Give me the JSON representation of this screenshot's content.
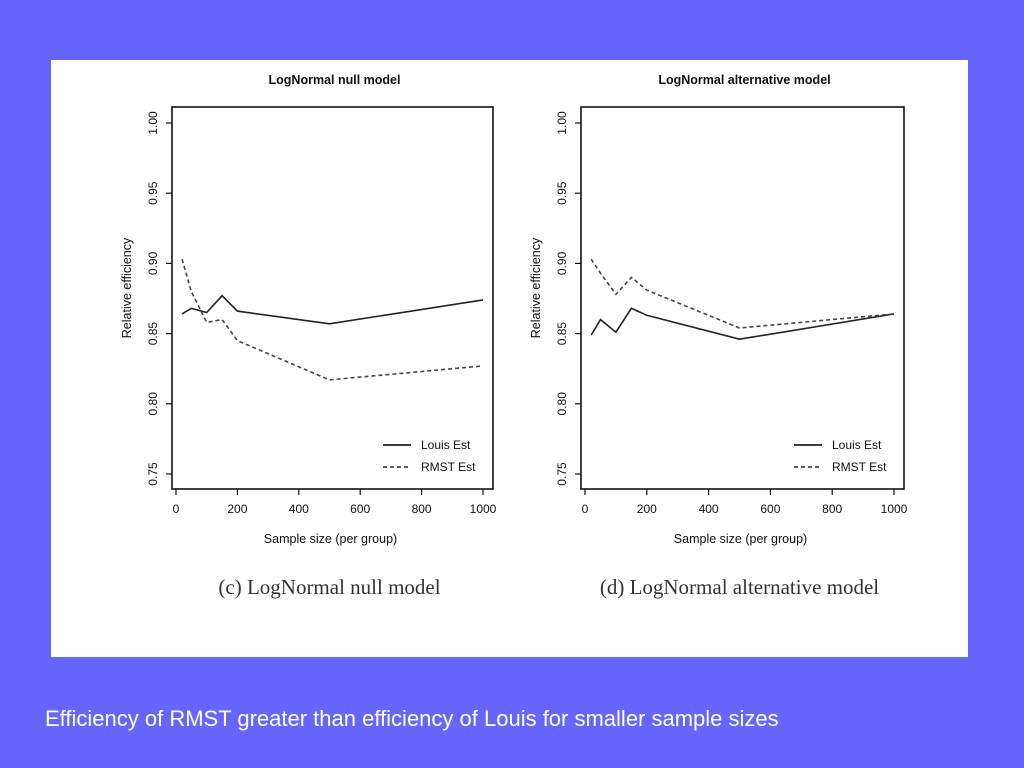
{
  "caption": "Efficiency of RMST greater than efficiency of Louis for smaller sample sizes",
  "colors": {
    "background": "#6666ff",
    "panel": "#ffffff",
    "louis": "#222222",
    "rmst": "#444444"
  },
  "chart_data": [
    {
      "type": "line",
      "title": "LogNormal null model",
      "subcaption": "(c) LogNormal null model",
      "xlabel": "Sample size (per group)",
      "ylabel": "Relative efficiency",
      "xlim": [
        0,
        1000
      ],
      "ylim": [
        0.75,
        1.0
      ],
      "xticks": [
        0,
        200,
        400,
        600,
        800,
        1000
      ],
      "yticks": [
        "0.75",
        "0.80",
        "0.85",
        "0.90",
        "0.95",
        "1.00"
      ],
      "legend": "bottom-right",
      "series": [
        {
          "name": "Louis Est",
          "style": "solid",
          "x": [
            20,
            50,
            100,
            150,
            200,
            500,
            1000
          ],
          "y": [
            0.864,
            0.868,
            0.865,
            0.877,
            0.866,
            0.857,
            0.874
          ]
        },
        {
          "name": "RMST Est",
          "style": "dashed",
          "x": [
            20,
            50,
            100,
            150,
            200,
            500,
            1000
          ],
          "y": [
            0.903,
            0.88,
            0.858,
            0.86,
            0.845,
            0.817,
            0.827
          ]
        }
      ]
    },
    {
      "type": "line",
      "title": "LogNormal alternative model",
      "subcaption": "(d) LogNormal alternative model",
      "xlabel": "Sample size (per group)",
      "ylabel": "Relative efficiency",
      "xlim": [
        0,
        1000
      ],
      "ylim": [
        0.75,
        1.0
      ],
      "xticks": [
        0,
        200,
        400,
        600,
        800,
        1000
      ],
      "yticks": [
        "0.75",
        "0.80",
        "0.85",
        "0.90",
        "0.95",
        "1.00"
      ],
      "legend": "bottom-right",
      "series": [
        {
          "name": "Louis Est",
          "style": "solid",
          "x": [
            20,
            50,
            100,
            150,
            200,
            500,
            1000
          ],
          "y": [
            0.849,
            0.86,
            0.851,
            0.868,
            0.863,
            0.846,
            0.864
          ]
        },
        {
          "name": "RMST Est",
          "style": "dashed",
          "x": [
            20,
            50,
            100,
            150,
            200,
            500,
            1000
          ],
          "y": [
            0.903,
            0.893,
            0.878,
            0.89,
            0.881,
            0.854,
            0.864
          ]
        }
      ]
    }
  ]
}
